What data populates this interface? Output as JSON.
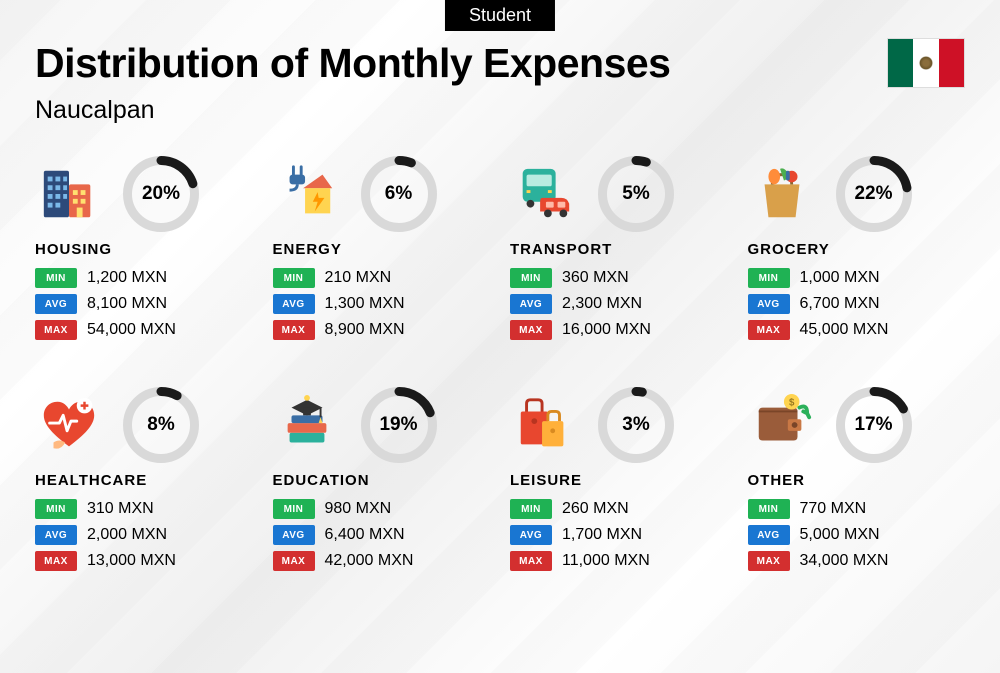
{
  "tag": "Student",
  "title": "Distribution of Monthly Expenses",
  "subtitle": "Naucalpan",
  "currency": "MXN",
  "labels": {
    "min": "MIN",
    "avg": "AVG",
    "max": "MAX"
  },
  "colors": {
    "min_badge": "#1fb254",
    "avg_badge": "#1976d2",
    "max_badge": "#d32f2f",
    "donut_track": "#d9d9d9",
    "donut_fill": "#1a1a1a"
  },
  "donut": {
    "size": 76,
    "stroke": 9
  },
  "categories": [
    {
      "key": "housing",
      "name": "HOUSING",
      "percent": 20,
      "min": "1,200",
      "avg": "8,100",
      "max": "54,000"
    },
    {
      "key": "energy",
      "name": "ENERGY",
      "percent": 6,
      "min": "210",
      "avg": "1,300",
      "max": "8,900"
    },
    {
      "key": "transport",
      "name": "TRANSPORT",
      "percent": 5,
      "min": "360",
      "avg": "2,300",
      "max": "16,000"
    },
    {
      "key": "grocery",
      "name": "GROCERY",
      "percent": 22,
      "min": "1,000",
      "avg": "6,700",
      "max": "45,000"
    },
    {
      "key": "healthcare",
      "name": "HEALTHCARE",
      "percent": 8,
      "min": "310",
      "avg": "2,000",
      "max": "13,000"
    },
    {
      "key": "education",
      "name": "EDUCATION",
      "percent": 19,
      "min": "980",
      "avg": "6,400",
      "max": "42,000"
    },
    {
      "key": "leisure",
      "name": "LEISURE",
      "percent": 3,
      "min": "260",
      "avg": "1,700",
      "max": "11,000"
    },
    {
      "key": "other",
      "name": "OTHER",
      "percent": 17,
      "min": "770",
      "avg": "5,000",
      "max": "34,000"
    }
  ]
}
